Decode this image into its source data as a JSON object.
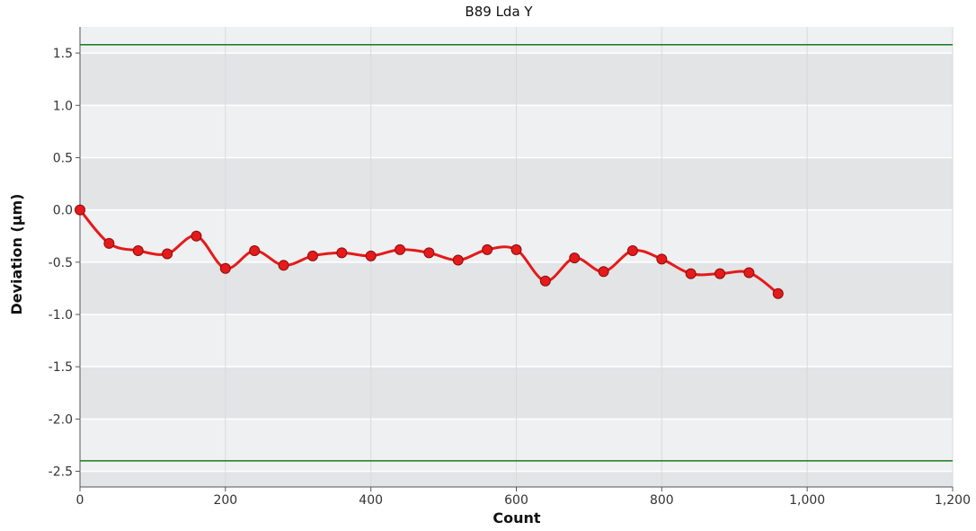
{
  "chart_data": {
    "type": "line",
    "title": "B89 Lda Y",
    "xlabel": "Count",
    "ylabel": "Deviation (µm)",
    "xlim": [
      0,
      1200
    ],
    "ylim": [
      -2.65,
      1.75
    ],
    "x_ticks": [
      0,
      200,
      400,
      600,
      800,
      1000,
      1200
    ],
    "x_tick_labels": [
      "0",
      "200",
      "400",
      "600",
      "800",
      "1,000",
      "1,200"
    ],
    "y_ticks": [
      1.5,
      1.0,
      0.5,
      0.0,
      -0.5,
      -1.0,
      -1.5,
      -2.0,
      -2.5
    ],
    "y_tick_labels": [
      "1.5",
      "1.0",
      "0.5",
      "0.0",
      "-0.5",
      "-1.0",
      "-1.5",
      "-2.0",
      "-2.5"
    ],
    "grid": true,
    "series": [
      {
        "color": "#e51a1a",
        "x": [
          0,
          40,
          80,
          120,
          160,
          200,
          240,
          280,
          320,
          360,
          400,
          440,
          480,
          520,
          560,
          600,
          640,
          680,
          720,
          760,
          800,
          840,
          880,
          920,
          960
        ],
        "y": [
          0.0,
          -0.32,
          -0.39,
          -0.42,
          -0.25,
          -0.56,
          -0.39,
          -0.53,
          -0.44,
          -0.41,
          -0.44,
          -0.38,
          -0.41,
          -0.48,
          -0.38,
          -0.38,
          -0.68,
          -0.46,
          -0.59,
          -0.39,
          -0.47,
          -0.61,
          -0.61,
          -0.6,
          -0.8
        ]
      }
    ],
    "limit_lines": [
      {
        "y": 1.58,
        "color": "#1a7a1a"
      },
      {
        "y": -2.4,
        "color": "#1a7a1a"
      }
    ],
    "colors": {
      "plot_band_light": "#eef0f1",
      "plot_band_dark": "#e2e4e6",
      "grid": "#ffffff"
    }
  }
}
